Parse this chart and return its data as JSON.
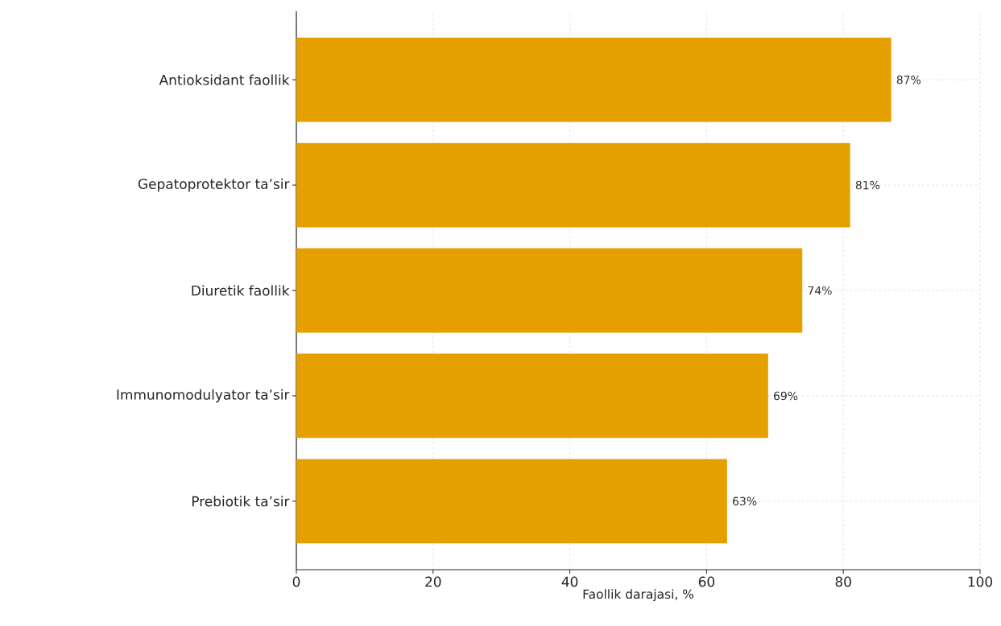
{
  "chart_data": {
    "type": "bar",
    "orientation": "horizontal",
    "categories": [
      "Antioksidant faollik",
      "Gepatoprotektor ta’sir",
      "Diuretik faollik",
      "Immunomodulyator ta’sir",
      "Prebiotik ta’sir"
    ],
    "values": [
      87,
      81,
      74,
      69,
      63
    ],
    "value_labels": [
      "87%",
      "81%",
      "74%",
      "69%",
      "63%"
    ],
    "color": "#e5a000",
    "xlabel": "Faollik darajasi, %",
    "xlim": [
      0,
      100
    ],
    "xticks": [
      0,
      20,
      40,
      60,
      80,
      100
    ],
    "grid": true
  }
}
